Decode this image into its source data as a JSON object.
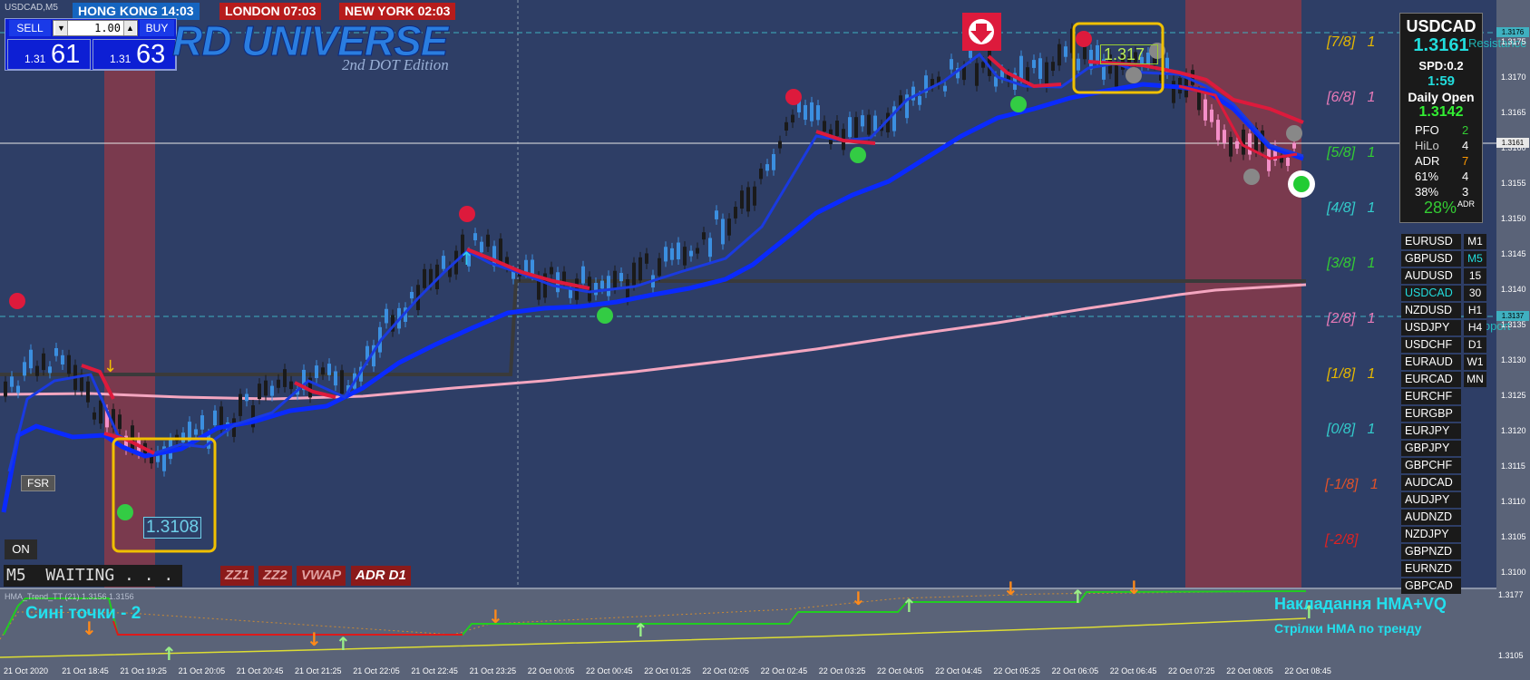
{
  "chart_title": "USDCAD,M5",
  "sessions": {
    "hong_kong": "HONG KONG 14:03",
    "london": "LONDON 07:03",
    "new_york": "NEW YORK 02:03"
  },
  "trade_panel": {
    "sell_label": "SELL",
    "buy_label": "BUY",
    "lot_value": "1.00",
    "sell_prefix": "1.31",
    "sell_big": "61",
    "buy_prefix": "1.31",
    "buy_big": "63"
  },
  "brand": {
    "title": "RD UNIVERSE",
    "subtitle": "2nd DOT Edition"
  },
  "info_panel": {
    "symbol": "USDCAD",
    "price": "1.3161",
    "spread": "SPD:0.2",
    "time": "1:59",
    "daily_open_label": "Daily Open",
    "daily_open_value": "1.3142",
    "rows": [
      {
        "label": "PFO",
        "value": "2",
        "color": "#33cc33"
      },
      {
        "label": "HiLo",
        "value": "4",
        "color": "#ffffff"
      },
      {
        "label": "ADR",
        "value": "7",
        "color": "#ff9900"
      },
      {
        "label": "61%",
        "value": "4",
        "color": "#ffffff"
      },
      {
        "label": "38%",
        "value": "3",
        "color": "#ffffff"
      }
    ],
    "adr_pct": "28%",
    "adr_tag": "ADR"
  },
  "symbols": [
    "EURUSD",
    "GBPUSD",
    "AUDUSD",
    "USDCAD",
    "NZDUSD",
    "USDJPY",
    "USDCHF",
    "EURAUD",
    "EURCAD",
    "EURCHF",
    "EURGBP",
    "EURJPY",
    "GBPJPY",
    "GBPCHF",
    "AUDCAD",
    "AUDJPY",
    "AUDNZD",
    "NZDJPY",
    "GBPNZD",
    "EURNZD",
    "GBPCAD"
  ],
  "active_symbol": "USDCAD",
  "timeframes": [
    "M1",
    "M5",
    "15",
    "30",
    "H1",
    "H4",
    "D1",
    "W1",
    "MN"
  ],
  "active_timeframe": "M5",
  "murrey": [
    {
      "label": "[7/8]",
      "num": "1",
      "color": "#e6b800"
    },
    {
      "label": "[6/8]",
      "num": "1",
      "color": "#e87ab8"
    },
    {
      "label": "[5/8]",
      "num": "1",
      "color": "#33cc33"
    },
    {
      "label": "[4/8]",
      "num": "1",
      "color": "#33cccc"
    },
    {
      "label": "[3/8]",
      "num": "1",
      "color": "#33cc33"
    },
    {
      "label": "[2/8]",
      "num": "1",
      "color": "#e87ab8"
    },
    {
      "label": "[1/8]",
      "num": "1",
      "color": "#e6b800"
    },
    {
      "label": "[0/8]",
      "num": "1",
      "color": "#33cccc"
    },
    {
      "label": "[-1/8]",
      "num": "1",
      "color": "#e0522a"
    },
    {
      "label": "[-2/8]",
      "num": "",
      "color": "#dd2222"
    }
  ],
  "price_axis": [
    "1.3175",
    "1.3170",
    "1.3165",
    "1.3160",
    "1.3155",
    "1.3150",
    "1.3145",
    "1.3140",
    "1.3135",
    "1.3130",
    "1.3125",
    "1.3120",
    "1.3115",
    "1.3110",
    "1.3105",
    "1.3100"
  ],
  "price_axis_tags": {
    "top": "1.3176",
    "bid": "1.3161",
    "low": "1.3137"
  },
  "price_boxes": {
    "low": "1.3108",
    "high": "1.317"
  },
  "side_labels": {
    "resistance": "Resistance",
    "support": "Support"
  },
  "status": {
    "fsr": "FSR",
    "on": "ON",
    "waiting": "M5  WAITING . . ."
  },
  "bottom_buttons": [
    "ZZ1",
    "ZZ2",
    "VWAP",
    "ADR D1"
  ],
  "indicator": {
    "title": "HMA_Trend_TT (21) 1.3156 1.3156",
    "note_left": "Сині точки - 2",
    "note_right_1": "Накладання HMA+VQ",
    "note_right_2": "Стрілки HMA по тренду",
    "axis_top": "1.3177",
    "axis_bottom": "1.3105"
  },
  "time_axis": [
    "21 Oct 2020",
    "21 Oct 18:45",
    "21 Oct 19:25",
    "21 Oct 20:05",
    "21 Oct 20:45",
    "21 Oct 21:25",
    "21 Oct 22:05",
    "21 Oct 22:45",
    "21 Oct 23:25",
    "22 Oct 00:05",
    "22 Oct 00:45",
    "22 Oct 01:25",
    "22 Oct 02:05",
    "22 Oct 02:45",
    "22 Oct 03:25",
    "22 Oct 04:05",
    "22 Oct 04:45",
    "22 Oct 05:25",
    "22 Oct 06:05",
    "22 Oct 06:45",
    "22 Oct 07:25",
    "22 Oct 08:05",
    "22 Oct 08:45"
  ],
  "colors": {
    "chart_bg": "#2e3e66",
    "session_zone": "#7a3a4e",
    "indicator_bg": "#5a6378",
    "hma_blue": "#0a2aff",
    "hma_red": "#dd1a3c",
    "box_yellow": "#f0c000"
  }
}
